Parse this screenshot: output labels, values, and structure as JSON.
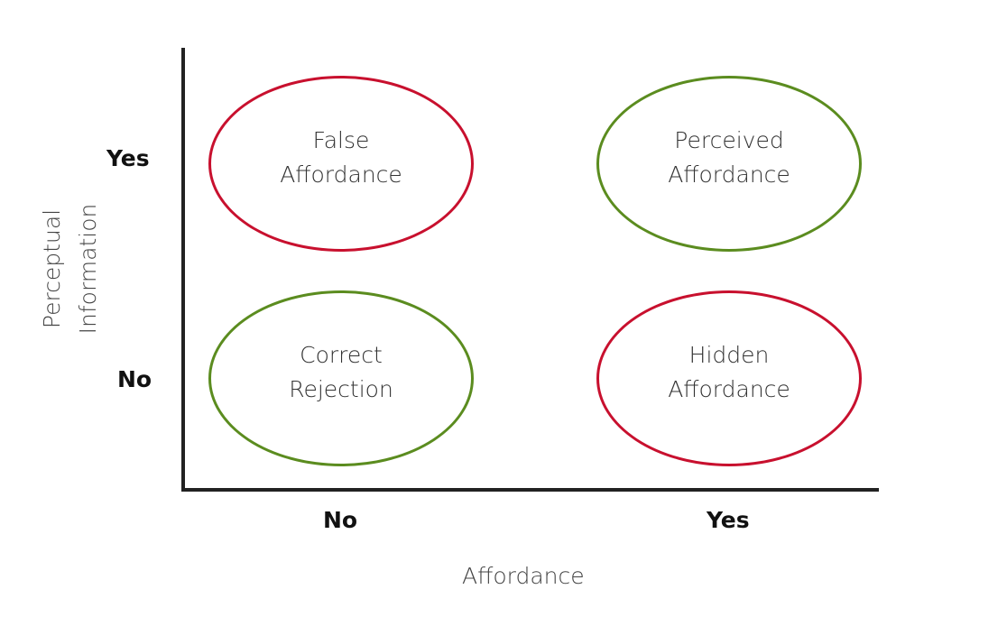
{
  "axes": {
    "x_title": "Affordance",
    "y_title_line1": "Perceptual",
    "y_title_line2": "Information",
    "x_ticks": [
      "No",
      "Yes"
    ],
    "y_ticks": [
      "Yes",
      "No"
    ]
  },
  "quadrants": [
    {
      "line1": "False",
      "line2": "Affordance",
      "color": "#c8102e"
    },
    {
      "line1": "Perceived",
      "line2": "Affordance",
      "color": "#5b8c1f"
    },
    {
      "line1": "Correct",
      "line2": "Rejection",
      "color": "#5b8c1f"
    },
    {
      "line1": "Hidden",
      "line2": "Affordance",
      "color": "#c8102e"
    }
  ]
}
